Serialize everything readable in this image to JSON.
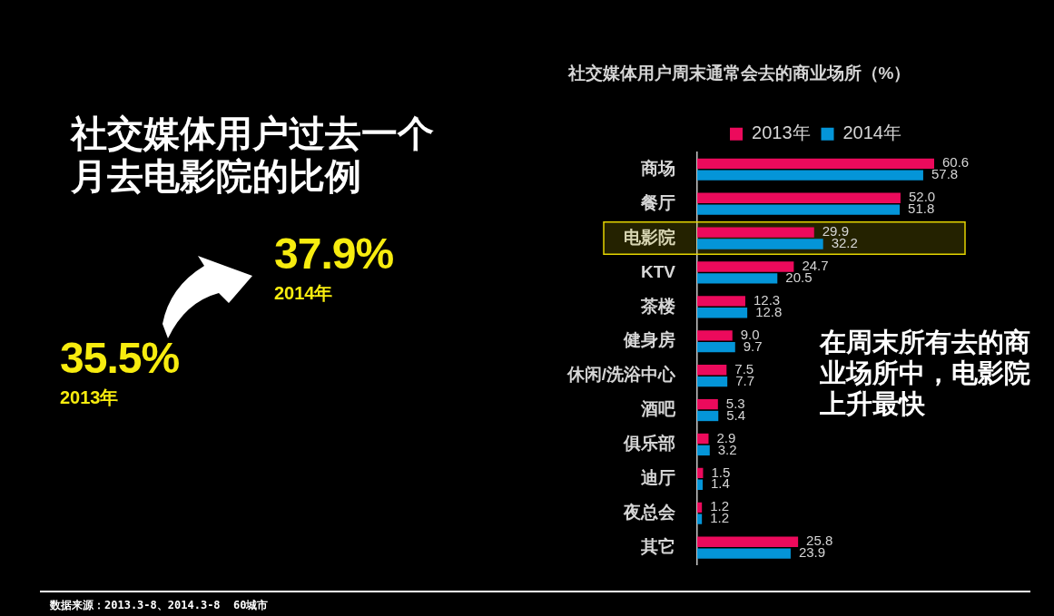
{
  "chart_data": [
    {
      "type": "other",
      "title": "社交媒体用户过去一个月去电影院的比例",
      "categories": [
        "2013年",
        "2014年"
      ],
      "value_labels": [
        "35.5%",
        "37.9%"
      ],
      "color": "#f7ec0f",
      "annotations": [
        "数据来源：2013.3-8、2014.3-8  60城市"
      ]
    },
    {
      "type": "bar",
      "orientation": "horizontal",
      "title": "社交媒体用户周末通常会去的商业场所（%）",
      "categories": [
        "商场",
        "餐厅",
        "电影院",
        "KTV",
        "茶楼",
        "健身房",
        "休闲/洗浴中心",
        "酒吧",
        "俱乐部",
        "迪厅",
        "夜总会",
        "其它"
      ],
      "series": [
        {
          "name": "2013年",
          "color": "#ec0a5c",
          "values": [
            60.6,
            52.0,
            29.9,
            24.7,
            12.3,
            9.0,
            7.5,
            5.3,
            2.9,
            1.5,
            1.2,
            25.8
          ],
          "value_labels": [
            "60.6",
            "52.0",
            "29.9",
            "24.7",
            "12.3",
            "9.0",
            "7.5",
            "5.3",
            "2.9",
            "1.5",
            "1.2",
            "25.8"
          ]
        },
        {
          "name": "2014年",
          "color": "#0495d8",
          "values": [
            57.8,
            51.8,
            32.2,
            20.5,
            12.8,
            9.7,
            7.7,
            5.4,
            3.2,
            1.4,
            1.2,
            23.9
          ],
          "value_labels": [
            "57.8",
            "51.8",
            "32.2",
            "20.5",
            "12.8",
            "9.7",
            "7.7",
            "5.4",
            "3.2",
            "1.4",
            "1.2",
            "23.9"
          ]
        }
      ],
      "legend": "top",
      "bands": [
        {
          "axis": "y",
          "from": "电影院",
          "to": "电影院",
          "color": "#e3d400"
        }
      ],
      "annotations": [
        "在周末所有去的商业场所中，电影院上升最快"
      ]
    }
  ]
}
